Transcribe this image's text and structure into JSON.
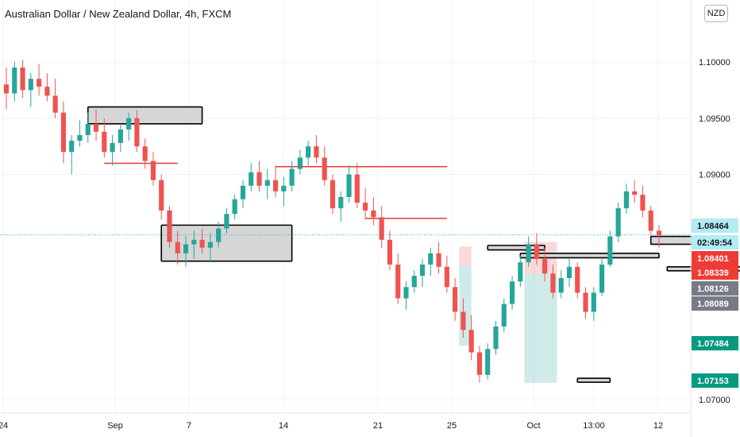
{
  "header": {
    "title": "Australian Dollar / New Zealand Dollar, 4h, FXCM",
    "currency_button": "NZD"
  },
  "colors": {
    "up": "#26a69a",
    "down": "#ef5350",
    "current_line": "#2fb5c8",
    "zone_fill": "#d6d6d6",
    "zone_border": "#000000",
    "level_line": "#e53935"
  },
  "chart_data": {
    "type": "candlestick",
    "title": "Australian Dollar / New Zealand Dollar, 4h, FXCM",
    "ylim": [
      1.0688,
      1.1055
    ],
    "y_ticks": [
      "1.10000",
      "1.09500",
      "1.09000",
      "1.07000"
    ],
    "x_ticks": [
      "24",
      "Sep",
      "7",
      "14",
      "21",
      "25",
      "Oct",
      "13:00",
      "12"
    ],
    "price_labels": [
      {
        "value": "1.08464",
        "kind": "current"
      },
      {
        "value": "02:49:54",
        "kind": "countdown"
      },
      {
        "value": "1.08401",
        "kind": "sell"
      },
      {
        "value": "1.08339",
        "kind": "sell"
      },
      {
        "value": "1.08126",
        "kind": "grey"
      },
      {
        "value": "1.08089",
        "kind": "grey"
      },
      {
        "value": "1.07484",
        "kind": "target"
      },
      {
        "value": "1.07153",
        "kind": "target"
      }
    ],
    "zones": [
      {
        "t0": 10,
        "t1": 24,
        "top": 1.096,
        "bottom": 1.0945
      },
      {
        "t0": 19,
        "t1": 35,
        "top": 1.0855,
        "bottom": 1.0823
      },
      {
        "t0": 59,
        "t1": 66,
        "top": 1.0837,
        "bottom": 1.0833
      },
      {
        "t0": 63,
        "t1": 80,
        "top": 1.083,
        "bottom": 1.0826
      },
      {
        "t0": 79,
        "t1": 87,
        "top": 1.0845,
        "bottom": 1.0838
      },
      {
        "t0": 70,
        "t1": 74,
        "top": 1.0719,
        "bottom": 1.0716
      },
      {
        "t0": 81,
        "t1": 93,
        "top": 1.0818,
        "bottom": 1.0816
      }
    ],
    "levels": [
      {
        "t0": 12,
        "t1": 21,
        "price": 1.091
      },
      {
        "t0": 33,
        "t1": 54,
        "price": 1.0907
      },
      {
        "t0": 44,
        "t1": 54,
        "price": 1.0861
      }
    ],
    "positions": [
      {
        "t0": 55.5,
        "t1": 57,
        "entry": 1.0819,
        "stop": 1.0836,
        "target": 1.0748
      },
      {
        "t0": 63.5,
        "t1": 67.5,
        "entry": 1.0812,
        "stop": 1.084,
        "target": 1.0715
      }
    ],
    "current_price": 1.08464,
    "candles": [
      [
        1.098,
        1.0995,
        1.0958,
        1.0972
      ],
      [
        1.0972,
        1.1,
        1.0965,
        1.0995
      ],
      [
        1.0995,
        1.1002,
        1.0968,
        1.0975
      ],
      [
        1.0975,
        1.099,
        1.096,
        1.0985
      ],
      [
        1.0985,
        1.0998,
        1.097,
        1.0978
      ],
      [
        1.0978,
        1.099,
        1.0965,
        1.097
      ],
      [
        1.097,
        1.0985,
        1.095,
        1.0955
      ],
      [
        1.0955,
        1.0965,
        1.091,
        1.092
      ],
      [
        1.092,
        1.0935,
        1.09,
        1.093
      ],
      [
        1.093,
        1.0948,
        1.0925,
        1.0935
      ],
      [
        1.0935,
        1.0955,
        1.0928,
        1.0945
      ],
      [
        1.0945,
        1.0958,
        1.093,
        1.0938
      ],
      [
        1.0938,
        1.095,
        1.0915,
        1.092
      ],
      [
        1.092,
        1.0935,
        1.0908,
        1.0928
      ],
      [
        1.0928,
        1.0945,
        1.092,
        1.094
      ],
      [
        1.094,
        1.0955,
        1.093,
        1.095
      ],
      [
        1.095,
        1.0957,
        1.092,
        1.0925
      ],
      [
        1.0925,
        1.0932,
        1.0905,
        1.0912
      ],
      [
        1.0912,
        1.092,
        1.089,
        1.0895
      ],
      [
        1.0895,
        1.09,
        1.086,
        1.0868
      ],
      [
        1.0868,
        1.0872,
        1.0835,
        1.084
      ],
      [
        1.084,
        1.085,
        1.082,
        1.083
      ],
      [
        1.083,
        1.0845,
        1.0818,
        1.0838
      ],
      [
        1.0838,
        1.085,
        1.0825,
        1.0842
      ],
      [
        1.0842,
        1.0852,
        1.083,
        1.0835
      ],
      [
        1.0835,
        1.0848,
        1.0822,
        1.084
      ],
      [
        1.084,
        1.0858,
        1.0835,
        1.0852
      ],
      [
        1.0852,
        1.087,
        1.0848,
        1.0865
      ],
      [
        1.0865,
        1.0882,
        1.086,
        1.0878
      ],
      [
        1.0878,
        1.0895,
        1.087,
        1.089
      ],
      [
        1.089,
        1.091,
        1.0885,
        1.0902
      ],
      [
        1.0902,
        1.0912,
        1.0885,
        1.089
      ],
      [
        1.089,
        1.0905,
        1.0878,
        1.0895
      ],
      [
        1.0895,
        1.0908,
        1.088,
        1.0885
      ],
      [
        1.0885,
        1.0898,
        1.0872,
        1.089
      ],
      [
        1.089,
        1.0912,
        1.0885,
        1.0905
      ],
      [
        1.0905,
        1.0922,
        1.09,
        1.0915
      ],
      [
        1.0915,
        1.093,
        1.0908,
        1.0925
      ],
      [
        1.0925,
        1.0935,
        1.091,
        1.0915
      ],
      [
        1.0915,
        1.0925,
        1.089,
        1.0895
      ],
      [
        1.0895,
        1.09,
        1.0865,
        1.087
      ],
      [
        1.087,
        1.0885,
        1.0858,
        1.088
      ],
      [
        1.088,
        1.0908,
        1.0875,
        1.09
      ],
      [
        1.09,
        1.091,
        1.087,
        1.0875
      ],
      [
        1.0875,
        1.0888,
        1.086,
        1.0868
      ],
      [
        1.0868,
        1.088,
        1.0855,
        1.0862
      ],
      [
        1.0862,
        1.0872,
        1.0835,
        1.0842
      ],
      [
        1.0842,
        1.085,
        1.0815,
        1.082
      ],
      [
        1.082,
        1.083,
        1.0785,
        1.079
      ],
      [
        1.079,
        1.0805,
        1.078,
        1.08
      ],
      [
        1.08,
        1.0815,
        1.0795,
        1.081
      ],
      [
        1.081,
        1.0825,
        1.08,
        1.082
      ],
      [
        1.082,
        1.0835,
        1.081,
        1.083
      ],
      [
        1.083,
        1.084,
        1.0812,
        1.0818
      ],
      [
        1.0818,
        1.0828,
        1.0795,
        1.08
      ],
      [
        1.08,
        1.0808,
        1.077,
        1.0778
      ],
      [
        1.0778,
        1.079,
        1.0755,
        1.0762
      ],
      [
        1.0762,
        1.0775,
        1.0735,
        1.0742
      ],
      [
        1.0742,
        1.0748,
        1.0715,
        1.0722
      ],
      [
        1.0722,
        1.075,
        1.0718,
        1.0745
      ],
      [
        1.0745,
        1.077,
        1.074,
        1.0765
      ],
      [
        1.0765,
        1.079,
        1.076,
        1.0785
      ],
      [
        1.0785,
        1.081,
        1.078,
        1.0805
      ],
      [
        1.0805,
        1.0828,
        1.08,
        1.0822
      ],
      [
        1.0822,
        1.0845,
        1.0818,
        1.0838
      ],
      [
        1.0838,
        1.0848,
        1.082,
        1.0825
      ],
      [
        1.0825,
        1.0835,
        1.0805,
        1.0812
      ],
      [
        1.0812,
        1.082,
        1.079,
        1.0795
      ],
      [
        1.0795,
        1.0815,
        1.079,
        1.0808
      ],
      [
        1.0808,
        1.0825,
        1.08,
        1.0818
      ],
      [
        1.0818,
        1.0822,
        1.079,
        1.0795
      ],
      [
        1.0795,
        1.08,
        1.0772,
        1.0778
      ],
      [
        1.0778,
        1.08,
        1.077,
        1.0795
      ],
      [
        1.0795,
        1.0825,
        1.0792,
        1.082
      ],
      [
        1.082,
        1.085,
        1.0818,
        1.0845
      ],
      [
        1.0845,
        1.0875,
        1.084,
        1.087
      ],
      [
        1.087,
        1.0892,
        1.0865,
        1.0885
      ],
      [
        1.0885,
        1.0895,
        1.0875,
        1.0882
      ],
      [
        1.0882,
        1.089,
        1.0862,
        1.0868
      ],
      [
        1.0868,
        1.0872,
        1.0845,
        1.085
      ],
      [
        1.085,
        1.0855,
        1.0835,
        1.0846
      ]
    ]
  }
}
